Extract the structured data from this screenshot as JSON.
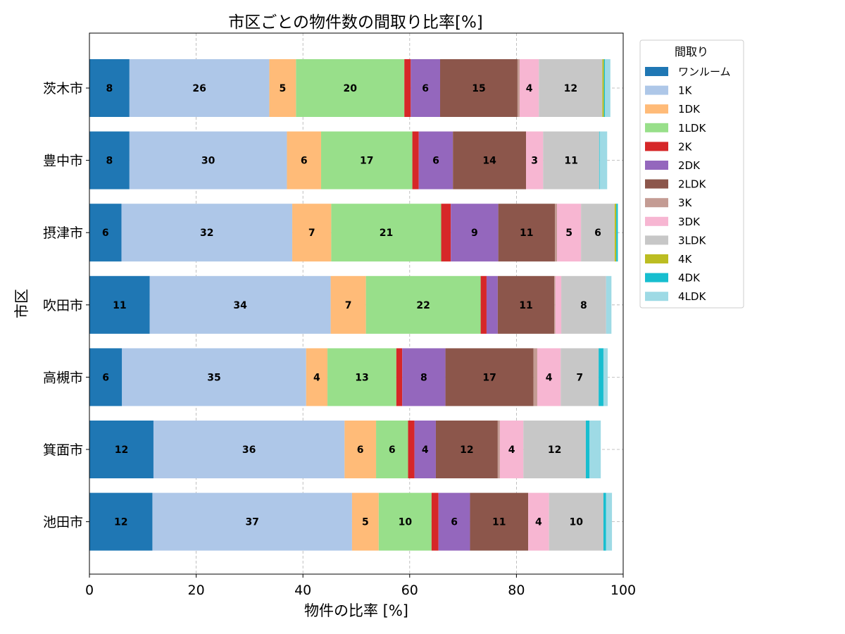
{
  "chart_data": {
    "type": "bar",
    "orientation": "horizontal",
    "stacked": true,
    "title": "市区ごとの物件数の間取り比率[%]",
    "xlabel": "物件の比率 [%]",
    "ylabel": "市区",
    "xlim": [
      0,
      100
    ],
    "xticks": [
      "0",
      "20",
      "40",
      "60",
      "80",
      "100"
    ],
    "grid": true,
    "legend": {
      "title": "間取り",
      "placement": "outside-top-right"
    },
    "categories": [
      "茨木市",
      "豊中市",
      "摂津市",
      "吹田市",
      "高槻市",
      "箕面市",
      "池田市"
    ],
    "series": [
      {
        "name": "ワンルーム",
        "color": "#1f77b4",
        "values": [
          7.5,
          7.5,
          6.0,
          11.3,
          6.1,
          12.0,
          11.8
        ]
      },
      {
        "name": "1K",
        "color": "#aec7e8",
        "values": [
          26.2,
          29.5,
          32.0,
          33.9,
          34.5,
          35.8,
          37.4
        ]
      },
      {
        "name": "1DK",
        "color": "#ffbb78",
        "values": [
          5.0,
          6.4,
          7.3,
          6.6,
          4.0,
          5.9,
          5.0
        ]
      },
      {
        "name": "1LDK",
        "color": "#98df8a",
        "values": [
          20.3,
          17.1,
          20.6,
          21.5,
          12.9,
          6.0,
          9.9
        ]
      },
      {
        "name": "2K",
        "color": "#d62728",
        "values": [
          1.2,
          1.2,
          1.8,
          1.1,
          1.1,
          1.2,
          1.3
        ]
      },
      {
        "name": "2DK",
        "color": "#9467bd",
        "values": [
          5.5,
          6.4,
          8.9,
          2.1,
          8.1,
          4.0,
          5.9
        ]
      },
      {
        "name": "2LDK",
        "color": "#8c564b",
        "values": [
          14.5,
          13.7,
          10.6,
          10.6,
          16.5,
          11.6,
          10.9
        ]
      },
      {
        "name": "3K",
        "color": "#c49c94",
        "values": [
          0.4,
          0.0,
          0.4,
          0.2,
          0.7,
          0.4,
          0.0
        ]
      },
      {
        "name": "3DK",
        "color": "#f7b6d2",
        "values": [
          3.6,
          3.2,
          4.5,
          1.1,
          4.4,
          4.4,
          3.9
        ]
      },
      {
        "name": "3LDK",
        "color": "#c7c7c7",
        "values": [
          11.9,
          10.5,
          6.3,
          8.4,
          7.1,
          11.7,
          10.2
        ]
      },
      {
        "name": "4K",
        "color": "#bcbd22",
        "values": [
          0.3,
          0.0,
          0.3,
          0.0,
          0.0,
          0.0,
          0.0
        ]
      },
      {
        "name": "4DK",
        "color": "#17becf",
        "values": [
          0.2,
          0.1,
          0.3,
          0.0,
          0.9,
          0.7,
          0.5
        ]
      },
      {
        "name": "4LDK",
        "color": "#9edae5",
        "values": [
          1.0,
          1.4,
          0.0,
          1.0,
          0.8,
          2.1,
          1.1
        ]
      }
    ]
  }
}
